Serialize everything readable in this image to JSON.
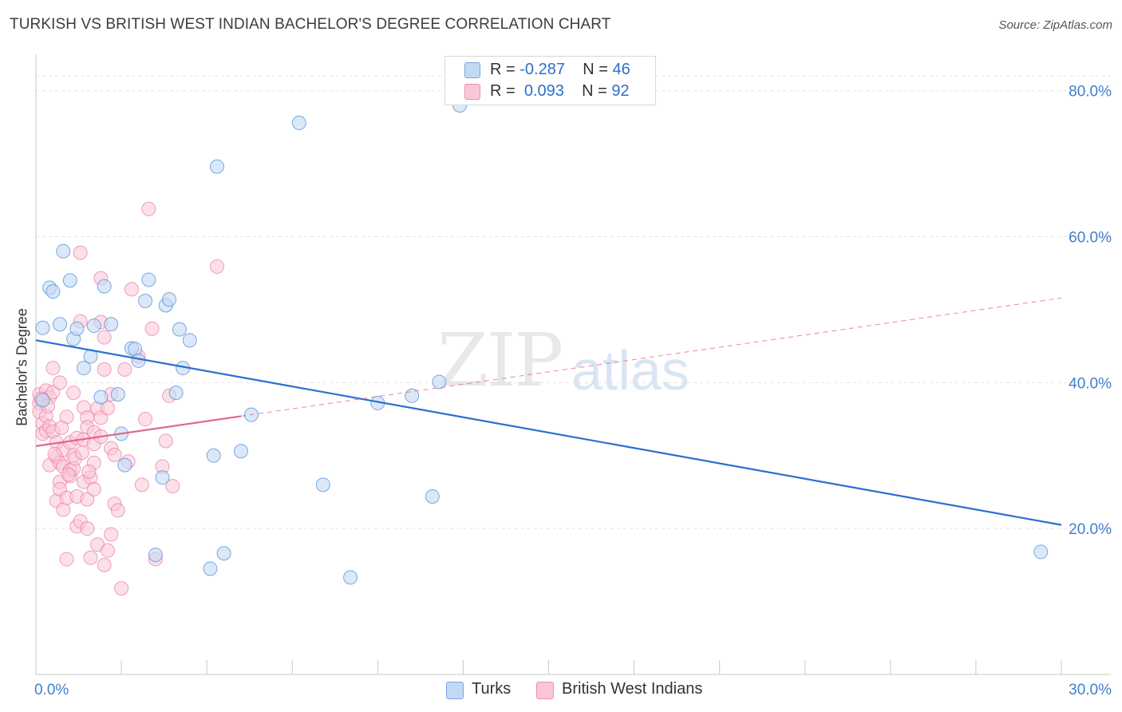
{
  "header": {
    "title": "TURKISH VS BRITISH WEST INDIAN BACHELOR'S DEGREE CORRELATION CHART",
    "source": "Source: ZipAtlas.com"
  },
  "legend": {
    "rows": [
      {
        "r_label": "R = ",
        "r_value": "-0.287",
        "n_label": "N = ",
        "n_value": "46",
        "color": "#aac8f0"
      },
      {
        "r_label": "R = ",
        "r_value": "0.093",
        "n_label": "N = ",
        "n_value": "92",
        "color": "#f7b8cc"
      }
    ]
  },
  "bottom_legend": {
    "turks": "Turks",
    "bwi": "British West Indians"
  },
  "watermark": {
    "zip": "ZIP",
    "atlas": "atlas"
  },
  "chart_data": {
    "type": "scatter",
    "ylabel": "Bachelor's Degree",
    "xlim": [
      0,
      30
    ],
    "ylim": [
      0,
      85
    ],
    "x_tick_labels": [
      {
        "value": 0,
        "label": "0.0%"
      },
      {
        "value": 30,
        "label": "30.0%"
      }
    ],
    "y_tick_labels": [
      {
        "value": 20,
        "label": "20.0%"
      },
      {
        "value": 40,
        "label": "40.0%"
      },
      {
        "value": 60,
        "label": "60.0%"
      },
      {
        "value": 80,
        "label": "80.0%"
      }
    ],
    "grid": true,
    "colors": {
      "turks": "#5b93d9",
      "turks_fill": "#c3d8f3",
      "bwi": "#e9799e",
      "bwi_fill": "#f9c7d7",
      "trend_turks": "#2a6fcf",
      "trend_bwi": "#e06890"
    },
    "series": [
      {
        "name": "Turks",
        "trend": {
          "x0": 0,
          "y0": 45.8,
          "x1": 30,
          "y1": 20.5
        },
        "points": [
          [
            0.2,
            47.5
          ],
          [
            0.2,
            37.6
          ],
          [
            0.4,
            53.0
          ],
          [
            0.5,
            52.5
          ],
          [
            0.7,
            48.0
          ],
          [
            0.8,
            58.0
          ],
          [
            1.0,
            54.0
          ],
          [
            1.1,
            46.0
          ],
          [
            1.2,
            47.4
          ],
          [
            1.4,
            42.0
          ],
          [
            1.6,
            43.6
          ],
          [
            1.7,
            47.8
          ],
          [
            1.9,
            38.0
          ],
          [
            2.0,
            53.2
          ],
          [
            2.2,
            48.0
          ],
          [
            2.4,
            38.4
          ],
          [
            2.5,
            33.0
          ],
          [
            2.6,
            28.7
          ],
          [
            2.8,
            44.7
          ],
          [
            2.9,
            44.6
          ],
          [
            3.0,
            43.0
          ],
          [
            3.2,
            51.2
          ],
          [
            3.3,
            54.1
          ],
          [
            3.5,
            16.4
          ],
          [
            3.7,
            27.0
          ],
          [
            3.8,
            50.6
          ],
          [
            3.9,
            51.4
          ],
          [
            4.1,
            38.6
          ],
          [
            4.2,
            47.3
          ],
          [
            4.3,
            42.0
          ],
          [
            4.5,
            45.8
          ],
          [
            5.1,
            14.5
          ],
          [
            5.2,
            30.0
          ],
          [
            5.3,
            69.6
          ],
          [
            5.5,
            16.6
          ],
          [
            6.0,
            30.6
          ],
          [
            6.3,
            35.6
          ],
          [
            7.7,
            75.6
          ],
          [
            8.4,
            26.0
          ],
          [
            9.2,
            13.3
          ],
          [
            10.0,
            37.2
          ],
          [
            11.0,
            38.2
          ],
          [
            11.6,
            24.4
          ],
          [
            11.8,
            40.1
          ],
          [
            12.4,
            78.0
          ],
          [
            29.4,
            16.8
          ]
        ]
      },
      {
        "name": "British West Indians",
        "trend": {
          "x0": 0,
          "y0": 31.3,
          "x1": 6.0,
          "y1": 35.4,
          "dash_to_x": 30,
          "dash_to_y": 51.6
        },
        "points": [
          [
            0.1,
            38.4
          ],
          [
            0.1,
            37.2
          ],
          [
            0.1,
            36.0
          ],
          [
            0.2,
            34.4
          ],
          [
            0.2,
            33.0
          ],
          [
            0.3,
            38.9
          ],
          [
            0.3,
            35.4
          ],
          [
            0.3,
            33.4
          ],
          [
            0.4,
            38.0
          ],
          [
            0.4,
            34.0
          ],
          [
            0.4,
            28.7
          ],
          [
            0.5,
            42.0
          ],
          [
            0.5,
            38.7
          ],
          [
            0.5,
            33.3
          ],
          [
            0.6,
            31.8
          ],
          [
            0.6,
            29.8
          ],
          [
            0.6,
            23.8
          ],
          [
            0.7,
            40.0
          ],
          [
            0.7,
            29.0
          ],
          [
            0.7,
            26.4
          ],
          [
            0.7,
            25.4
          ],
          [
            0.8,
            30.8
          ],
          [
            0.8,
            28.5
          ],
          [
            0.8,
            22.6
          ],
          [
            0.9,
            35.3
          ],
          [
            0.9,
            24.2
          ],
          [
            0.9,
            15.8
          ],
          [
            1.0,
            31.8
          ],
          [
            1.0,
            28.0
          ],
          [
            1.0,
            27.2
          ],
          [
            1.1,
            38.6
          ],
          [
            1.1,
            30.0
          ],
          [
            1.1,
            28.2
          ],
          [
            1.2,
            32.4
          ],
          [
            1.2,
            24.4
          ],
          [
            1.2,
            20.3
          ],
          [
            1.3,
            57.8
          ],
          [
            1.3,
            48.4
          ],
          [
            1.3,
            21.0
          ],
          [
            1.4,
            36.6
          ],
          [
            1.4,
            32.2
          ],
          [
            1.4,
            26.4
          ],
          [
            1.5,
            35.2
          ],
          [
            1.5,
            33.9
          ],
          [
            1.5,
            24.0
          ],
          [
            1.5,
            20.0
          ],
          [
            1.6,
            27.0
          ],
          [
            1.6,
            16.0
          ],
          [
            1.7,
            33.2
          ],
          [
            1.7,
            31.6
          ],
          [
            1.7,
            29.0
          ],
          [
            1.7,
            25.4
          ],
          [
            1.8,
            36.5
          ],
          [
            1.8,
            17.8
          ],
          [
            1.9,
            54.3
          ],
          [
            1.9,
            48.3
          ],
          [
            1.9,
            35.2
          ],
          [
            1.9,
            32.6
          ],
          [
            2.0,
            46.2
          ],
          [
            2.0,
            41.8
          ],
          [
            2.0,
            15.0
          ],
          [
            2.1,
            36.5
          ],
          [
            2.1,
            17.0
          ],
          [
            2.2,
            38.4
          ],
          [
            2.2,
            31.0
          ],
          [
            2.2,
            19.2
          ],
          [
            2.3,
            30.1
          ],
          [
            2.3,
            23.4
          ],
          [
            2.4,
            22.5
          ],
          [
            2.5,
            11.8
          ],
          [
            2.6,
            41.8
          ],
          [
            2.7,
            29.2
          ],
          [
            2.8,
            52.8
          ],
          [
            3.0,
            43.6
          ],
          [
            3.1,
            26.0
          ],
          [
            3.2,
            35.0
          ],
          [
            3.3,
            63.8
          ],
          [
            3.4,
            47.4
          ],
          [
            3.5,
            15.8
          ],
          [
            3.7,
            28.5
          ],
          [
            3.8,
            32.0
          ],
          [
            3.9,
            38.2
          ],
          [
            4.0,
            25.8
          ],
          [
            5.3,
            55.9
          ],
          [
            0.15,
            37.8
          ],
          [
            0.35,
            36.8
          ],
          [
            0.55,
            30.2
          ],
          [
            0.75,
            33.8
          ],
          [
            0.95,
            27.4
          ],
          [
            1.15,
            29.6
          ],
          [
            1.35,
            30.4
          ],
          [
            1.55,
            27.8
          ]
        ]
      }
    ]
  }
}
